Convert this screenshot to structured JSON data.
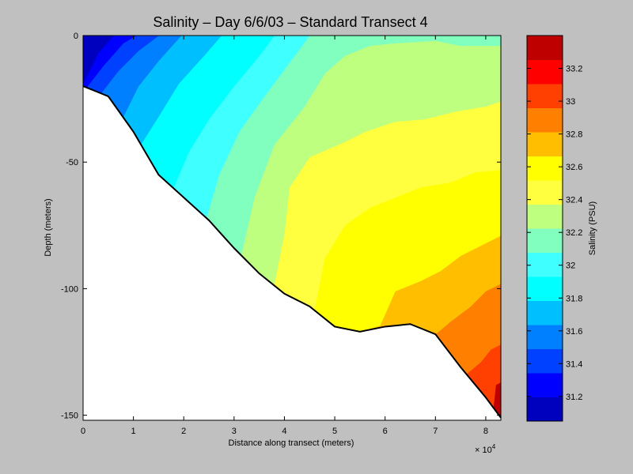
{
  "chart_data": {
    "type": "heatmap",
    "subtype": "filled-contour",
    "title": "Salinity – Day 6/6/03 – Standard Transect 4",
    "xlabel": "Distance along transect (meters)",
    "ylabel": "Depth (meters)",
    "x_multiplier_label": "× 10",
    "x_multiplier_exp": "4",
    "xlim": [
      0,
      83000
    ],
    "ylim": [
      -152,
      0
    ],
    "x_ticks": [
      0,
      10000,
      20000,
      30000,
      40000,
      50000,
      60000,
      70000,
      80000
    ],
    "x_tick_labels": [
      "0",
      "1",
      "2",
      "3",
      "4",
      "5",
      "6",
      "7",
      "8"
    ],
    "y_ticks": [
      0,
      -50,
      -100,
      -150
    ],
    "y_tick_labels": [
      "0",
      "-50",
      "-100",
      "-150"
    ],
    "colorbar": {
      "label": "Salinity (PSU)",
      "min": 31.05,
      "max": 33.4,
      "ticks": [
        31.2,
        31.4,
        31.6,
        31.8,
        32,
        32.2,
        32.4,
        32.6,
        32.8,
        33,
        33.2
      ],
      "tick_labels": [
        "31.2",
        "31.4",
        "31.6",
        "31.8",
        "32",
        "32.2",
        "32.4",
        "32.6",
        "32.8",
        "33",
        "33.2"
      ],
      "colors": [
        "#0000bf",
        "#0000ff",
        "#0040ff",
        "#0080ff",
        "#00bfff",
        "#00ffff",
        "#40ffff",
        "#80ffbf",
        "#bfff80",
        "#ffff40",
        "#ffff00",
        "#ffbf00",
        "#ff8000",
        "#ff4000",
        "#ff0000",
        "#bf0000"
      ]
    },
    "bottom_profile": {
      "distance": [
        0,
        5000,
        10000,
        15000,
        20000,
        25000,
        30000,
        35000,
        40000,
        45000,
        50000,
        55000,
        60000,
        65000,
        70000,
        75000,
        80000,
        83000
      ],
      "depth": [
        -20,
        -24,
        -38,
        -55,
        -64,
        -73,
        -84,
        -94,
        -102,
        -107,
        -115,
        -117,
        -115,
        -114,
        -118,
        -131,
        -143,
        -151
      ]
    },
    "contour_levels": [
      {
        "level": 31.25,
        "points": [
          [
            0,
            -19
          ],
          [
            3000,
            -7
          ],
          [
            6000,
            0
          ]
        ]
      },
      {
        "level": 31.4,
        "points": [
          [
            500,
            -21
          ],
          [
            4000,
            -12
          ],
          [
            8000,
            -3
          ],
          [
            10500,
            0
          ]
        ]
      },
      {
        "level": 31.55,
        "points": [
          [
            3500,
            -23
          ],
          [
            7000,
            -14
          ],
          [
            11000,
            -6
          ],
          [
            15000,
            0
          ]
        ]
      },
      {
        "level": 31.7,
        "points": [
          [
            8000,
            -32
          ],
          [
            11000,
            -20
          ],
          [
            15000,
            -10
          ],
          [
            19500,
            0
          ]
        ]
      },
      {
        "level": 31.85,
        "points": [
          [
            11500,
            -43
          ],
          [
            15000,
            -32
          ],
          [
            19000,
            -19
          ],
          [
            24000,
            -8
          ],
          [
            27500,
            0
          ]
        ]
      },
      {
        "level": 32.0,
        "points": [
          [
            18000,
            -60
          ],
          [
            21000,
            -46
          ],
          [
            25000,
            -33
          ],
          [
            30000,
            -20
          ],
          [
            35000,
            -8
          ],
          [
            38000,
            0
          ]
        ]
      },
      {
        "level": 32.15,
        "points": [
          [
            24500,
            -72
          ],
          [
            27000,
            -55
          ],
          [
            31000,
            -38
          ],
          [
            36000,
            -24
          ],
          [
            42000,
            -8
          ],
          [
            45000,
            0
          ]
        ]
      },
      {
        "level": 32.3,
        "points": [
          [
            31500,
            -86
          ],
          [
            34000,
            -64
          ],
          [
            38000,
            -43
          ],
          [
            44000,
            -28
          ],
          [
            48000,
            -15
          ],
          [
            52000,
            -8
          ],
          [
            57000,
            -4
          ],
          [
            62000,
            -3
          ],
          [
            70000,
            -2
          ],
          [
            75000,
            -4
          ],
          [
            83000,
            -4
          ]
        ]
      },
      {
        "level": 32.45,
        "points": [
          [
            38000,
            -98
          ],
          [
            40000,
            -78
          ],
          [
            41000,
            -60
          ],
          [
            45000,
            -48
          ],
          [
            52000,
            -42
          ],
          [
            56000,
            -38
          ],
          [
            62000,
            -34
          ],
          [
            68000,
            -33
          ],
          [
            74000,
            -30
          ],
          [
            80000,
            -28
          ],
          [
            83000,
            -26
          ]
        ]
      },
      {
        "level": 32.6,
        "points": [
          [
            46000,
            -108
          ],
          [
            48000,
            -88
          ],
          [
            52000,
            -75
          ],
          [
            57000,
            -68
          ],
          [
            62000,
            -64
          ],
          [
            67000,
            -60
          ],
          [
            73000,
            -58
          ],
          [
            78000,
            -54
          ],
          [
            83000,
            -53
          ]
        ]
      },
      {
        "level": 32.75,
        "points": [
          [
            59000,
            -114.5
          ],
          [
            62000,
            -101
          ],
          [
            67000,
            -97
          ],
          [
            71000,
            -93
          ],
          [
            75000,
            -87
          ],
          [
            80000,
            -82
          ],
          [
            83000,
            -79
          ]
        ]
      },
      {
        "level": 32.9,
        "points": [
          [
            70000,
            -118
          ],
          [
            73000,
            -113
          ],
          [
            77000,
            -107
          ],
          [
            80000,
            -101
          ],
          [
            83000,
            -98
          ]
        ]
      },
      {
        "level": 33.05,
        "points": [
          [
            76000,
            -134
          ],
          [
            79000,
            -129
          ],
          [
            81000,
            -124
          ],
          [
            83000,
            -122
          ]
        ]
      },
      {
        "level": 33.2,
        "points": [
          [
            81500,
            -147
          ],
          [
            82000,
            -138
          ],
          [
            83000,
            -137
          ]
        ]
      }
    ]
  }
}
